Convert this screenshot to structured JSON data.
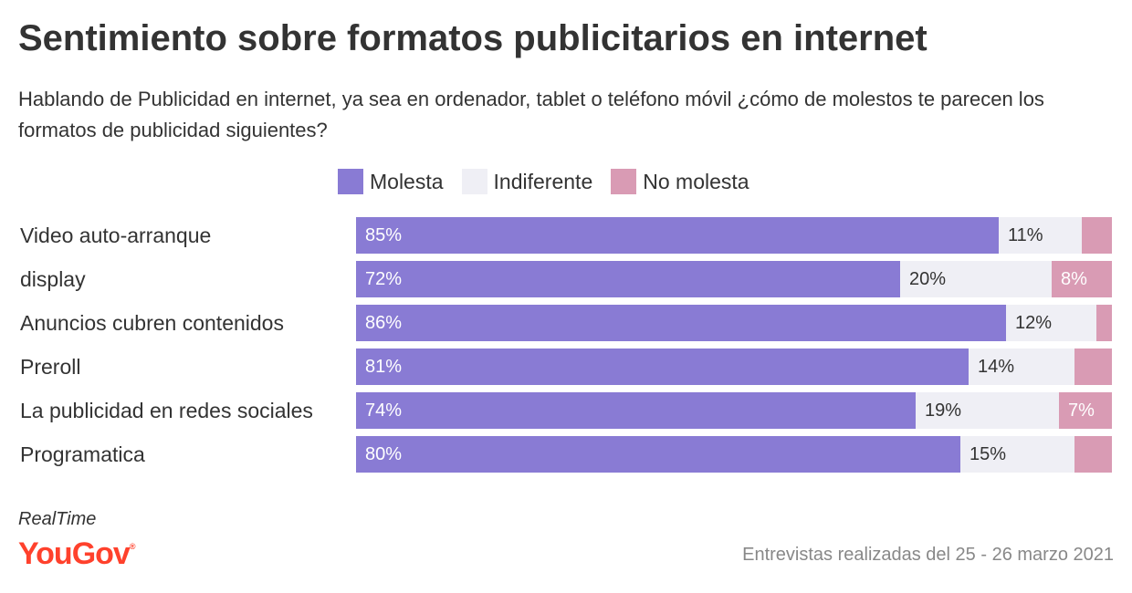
{
  "title": "Sentimiento sobre formatos publicitarios en internet",
  "subtitle": "Hablando de Publicidad en internet, ya sea en ordenador, tablet o teléfono móvil ¿cómo de molestos te parecen los formatos de publicidad siguientes?",
  "source": {
    "brand_tagline": "RealTime",
    "brand_logo": "YouGov",
    "note": "Entrevistas realizadas del 25 - 26 marzo 2021"
  },
  "colors": {
    "molesta": "#897bd4",
    "indiferente": "#efeff5",
    "no_molesta": "#d99bb4",
    "brand": "#ff412c"
  },
  "chart_data": {
    "type": "bar",
    "orientation": "horizontal",
    "stacked": true,
    "categories": [
      "Video auto-arranque",
      "display",
      "Anuncios cubren contenidos",
      "Preroll",
      "La publicidad en redes sociales",
      "Programatica"
    ],
    "series": [
      {
        "name": "Molesta",
        "values": [
          85,
          72,
          86,
          81,
          74,
          80
        ],
        "labels": [
          "85%",
          "72%",
          "86%",
          "81%",
          "74%",
          "80%"
        ]
      },
      {
        "name": "Indiferente",
        "values": [
          11,
          20,
          12,
          14,
          19,
          15
        ],
        "labels": [
          "11%",
          "20%",
          "12%",
          "14%",
          "19%",
          "15%"
        ]
      },
      {
        "name": "No molesta",
        "values": [
          4,
          8,
          2,
          5,
          7,
          5
        ],
        "labels": [
          "",
          "8%",
          "",
          "",
          "7%",
          ""
        ]
      }
    ],
    "xlim": [
      0,
      100
    ],
    "legend": "top",
    "grid": false
  }
}
